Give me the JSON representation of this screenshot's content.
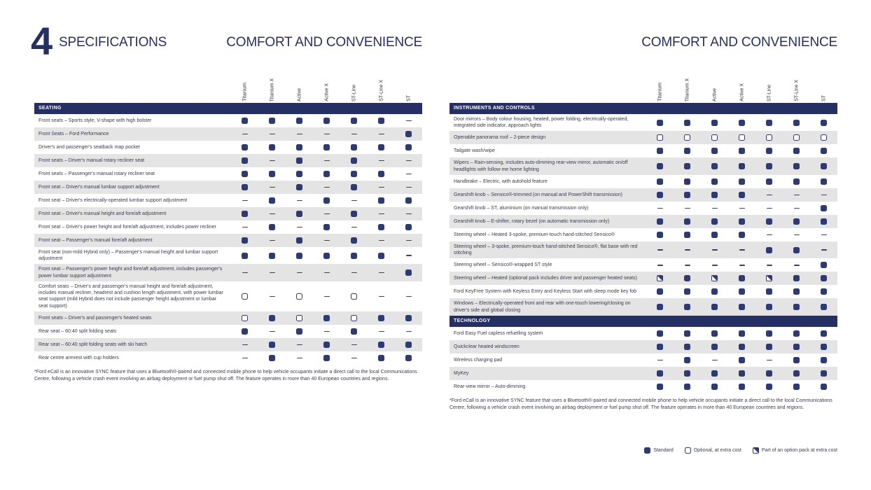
{
  "header": {
    "chapter_number": "4",
    "chapter_title": "SPECIFICATIONS",
    "left_page_title": "COMFORT AND CONVENIENCE",
    "right_page_title": "COMFORT AND CONVENIENCE"
  },
  "columns": [
    "Titanium",
    "Titanium X",
    "Active",
    "Active X",
    "ST-Line",
    "ST-Line X",
    "ST"
  ],
  "symbol_key": {
    "S": "standard",
    "O": "optional",
    "P": "option-pack",
    "-": "not-available"
  },
  "legend": [
    {
      "symbol": "S",
      "label": "Standard"
    },
    {
      "symbol": "O",
      "label": "Optional, at extra cost"
    },
    {
      "symbol": "P",
      "label": "Part of an option pack at extra cost"
    }
  ],
  "footnote": "*Ford eCall is an innovative SYNC feature that uses a Bluetooth®-paired and connected mobile phone to help vehicle occupants initiate a direct call to the local Communications Centre, following a vehicle crash event involving an airbag deployment or fuel pump shut off. The feature operates in more than 40 European countries and regions.",
  "colors": {
    "navy": "#262f63",
    "square": "#2c3a76",
    "stripe": "#e4e4e4"
  },
  "left_table": {
    "sections": [
      {
        "header": "SEATING",
        "rows": [
          {
            "label": "Front seats – Sports style, V-shape with high bolster",
            "values": [
              "S",
              "S",
              "S",
              "S",
              "S",
              "S",
              "-"
            ]
          },
          {
            "label": "Front Seats – Ford Performance",
            "values": [
              "-",
              "-",
              "-",
              "-",
              "-",
              "-",
              "S"
            ]
          },
          {
            "label": "Driver's and passenger's seatback map pocket",
            "values": [
              "S",
              "S",
              "S",
              "S",
              "S",
              "S",
              "S"
            ]
          },
          {
            "label": "Front seats – Driver's manual rotary recliner seat",
            "values": [
              "S",
              "-",
              "S",
              "-",
              "S",
              "-",
              "-"
            ]
          },
          {
            "label": "Front seats – Passenger's manual rotary recliner seat",
            "values": [
              "S",
              "S",
              "S",
              "S",
              "S",
              "S",
              "-"
            ]
          },
          {
            "label": "Front seat – Driver's manual lumbar support adjustment",
            "values": [
              "S",
              "-",
              "S",
              "-",
              "S",
              "-",
              "-"
            ]
          },
          {
            "label": "Front seat – Driver's electrically-operated lumbar support adjustment",
            "values": [
              "-",
              "S",
              "-",
              "S",
              "-",
              "S",
              "S"
            ]
          },
          {
            "label": "Front seat – Driver's manual height and fore/aft adjustment",
            "values": [
              "S",
              "-",
              "S",
              "-",
              "S",
              "-",
              "-"
            ]
          },
          {
            "label": "Front seat – Driver's power height and fore/aft adjustment, includes power recliner",
            "values": [
              "-",
              "S",
              "-",
              "S",
              "-",
              "S",
              "S"
            ]
          },
          {
            "label": "Front seat – Passenger's manual fore/aft adjustment",
            "values": [
              "S",
              "-",
              "S",
              "-",
              "S",
              "-",
              "-"
            ]
          },
          {
            "label": "Front seat (non-mild Hybrid only) – Passenger's manual height and lumbar support adjustment",
            "values": [
              "S",
              "S",
              "S",
              "S",
              "S",
              "S",
              "-"
            ]
          },
          {
            "label": "Front seat – Passenger's power height and fore/aft adjustment, includes passenger's power lumbar support adjustment",
            "values": [
              "-",
              "-",
              "-",
              "-",
              "-",
              "-",
              "S"
            ]
          },
          {
            "label": "Comfort seats – Driver's and passenger's manual height and fore/aft adjustment, includes manual recliner, headrest and cushion length adjustment, with power lumbar seat support (mild Hybrid does not include passenger height adjustment or lumbar seat support)",
            "values": [
              "O",
              "-",
              "O",
              "-",
              "O",
              "-",
              "-"
            ]
          },
          {
            "label": "Front seats – Driver's and passenger's heated seats",
            "values": [
              "O",
              "S",
              "O",
              "S",
              "O",
              "S",
              "S"
            ]
          },
          {
            "label": "Rear seat – 60:40 split folding seats",
            "values": [
              "S",
              "-",
              "S",
              "-",
              "S",
              "-",
              "-"
            ]
          },
          {
            "label": "Rear seat – 60:40 split folding seats with ski hatch",
            "values": [
              "-",
              "S",
              "-",
              "S",
              "-",
              "S",
              "S"
            ]
          },
          {
            "label": "Rear centre armrest with cup holders",
            "values": [
              "-",
              "S",
              "-",
              "S",
              "-",
              "S",
              "S"
            ]
          }
        ]
      }
    ]
  },
  "right_table": {
    "sections": [
      {
        "header": "INSTRUMENTS AND CONTROLS",
        "rows": [
          {
            "label": "Door mirrors – Body colour housing, heated, power folding, electrically-operated, integrated side indicator, approach lights",
            "values": [
              "S",
              "S",
              "S",
              "S",
              "S",
              "S",
              "S"
            ]
          },
          {
            "label": "Openable panorama roof – 2-piece design",
            "values": [
              "O",
              "O",
              "O",
              "O",
              "O",
              "O",
              "O"
            ]
          },
          {
            "label": "Tailgate wash/wipe",
            "values": [
              "S",
              "S",
              "S",
              "S",
              "S",
              "S",
              "S"
            ]
          },
          {
            "label": "Wipers – Rain-sensing, includes auto-dimming rear-view mirror, automatic on/off headlights with follow-me home lighting",
            "values": [
              "S",
              "S",
              "S",
              "S",
              "S",
              "S",
              "S"
            ]
          },
          {
            "label": "Handbrake – Electric, with autohold feature",
            "values": [
              "S",
              "S",
              "S",
              "S",
              "S",
              "S",
              "S"
            ]
          },
          {
            "label": "Gearshift knob – Sensico®-trimmed (on manual and PowerShift transmission)",
            "values": [
              "S",
              "S",
              "S",
              "S",
              "-",
              "-",
              "-"
            ]
          },
          {
            "label": "Gearshift knob – ST, aluminium (on manual transmission only)",
            "values": [
              "-",
              "-",
              "-",
              "-",
              "-",
              "-",
              "S"
            ]
          },
          {
            "label": "Gearshift knob – E-shifter, rotary bezel (on automatic transmission only)",
            "values": [
              "S",
              "S",
              "S",
              "S",
              "S",
              "S",
              "S"
            ]
          },
          {
            "label": "Steering wheel – Heated 3-spoke, premium-touch hand-stitched Sensico®",
            "values": [
              "S",
              "S",
              "S",
              "S",
              "-",
              "-",
              "-"
            ]
          },
          {
            "label": "Steering wheel – 3-spoke, premium-touch hand-stitched Sensico®, flat base with red stitching",
            "values": [
              "-",
              "-",
              "-",
              "-",
              "S",
              "S",
              "-"
            ]
          },
          {
            "label": "Steering wheel – Sensico®-wrapped ST style",
            "values": [
              "-",
              "-",
              "-",
              "-",
              "-",
              "-",
              "S"
            ]
          },
          {
            "label": "Steering wheel – Heated (optional pack includes driver and passenger heated seats)",
            "values": [
              "P",
              "S",
              "P",
              "S",
              "P",
              "S",
              "S"
            ]
          },
          {
            "label": "Ford KeyFree System with Keyless Entry and Keyless Start with sleep mode key fob",
            "values": [
              "S",
              "S",
              "S",
              "S",
              "S",
              "S",
              "S"
            ]
          },
          {
            "label": "Windows – Electrically-operated front and rear with one-touch lowering/closing on driver's side and global closing",
            "values": [
              "S",
              "S",
              "S",
              "S",
              "S",
              "S",
              "S"
            ]
          }
        ]
      },
      {
        "header": "TECHNOLOGY",
        "rows": [
          {
            "label": "Ford Easy Fuel capless refuelling system",
            "values": [
              "S",
              "S",
              "S",
              "S",
              "S",
              "S",
              "S"
            ]
          },
          {
            "label": "Quickclear heated windscreen",
            "values": [
              "S",
              "S",
              "S",
              "S",
              "S",
              "S",
              "S"
            ]
          },
          {
            "label": "Wireless charging pad",
            "values": [
              "-",
              "S",
              "-",
              "S",
              "-",
              "S",
              "S"
            ]
          },
          {
            "label": "MyKey",
            "values": [
              "S",
              "S",
              "S",
              "S",
              "S",
              "S",
              "S"
            ]
          },
          {
            "label": "Rear-view mirror – Auto-dimming",
            "values": [
              "S",
              "S",
              "S",
              "S",
              "S",
              "S",
              "S"
            ]
          }
        ]
      }
    ]
  }
}
